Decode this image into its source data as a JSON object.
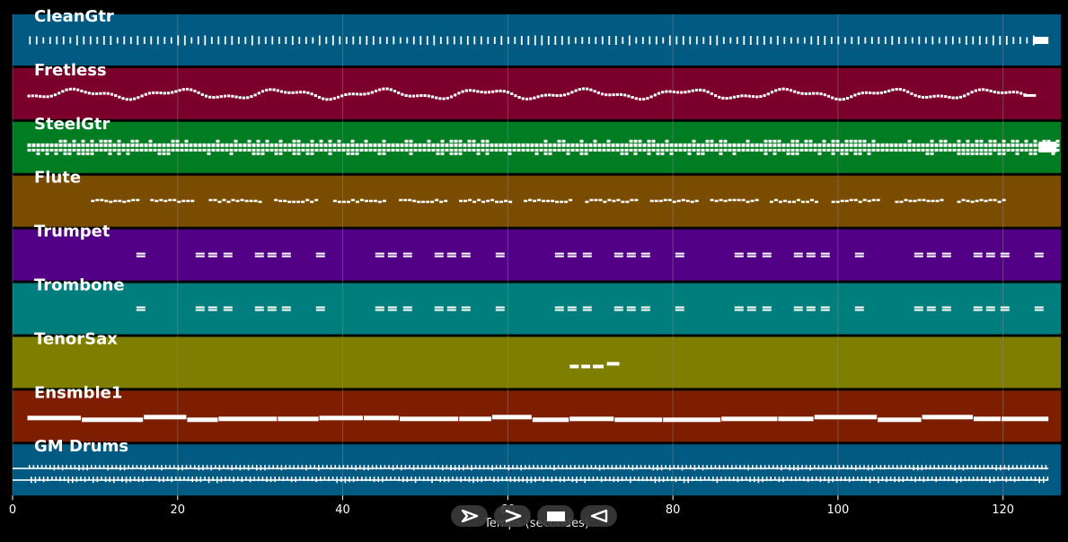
{
  "player": {
    "axis_title": "Temps (secondes)",
    "controls": [
      {
        "name": "play-button",
        "icon": "play-outline-icon"
      },
      {
        "name": "fast-forward-button",
        "icon": "chevron-right-icon"
      },
      {
        "name": "stop-button",
        "icon": "stop-icon"
      },
      {
        "name": "rewind-button",
        "icon": "play-reverse-outline-icon"
      }
    ]
  },
  "colors": {
    "background": "#000000",
    "grid": "#8a8a8a",
    "note": "#ffffff"
  },
  "chart_data": {
    "type": "piano-roll",
    "xlabel": "Temps (secondes)",
    "xlim": [
      0,
      127
    ],
    "xticks": [
      0,
      20,
      40,
      60,
      80,
      100,
      120
    ],
    "grid": true,
    "tracks": [
      {
        "name": "CleanGtr",
        "color": "#005a82",
        "pattern": "pulse",
        "start": 2,
        "end": 125.5
      },
      {
        "name": "Fretless",
        "color": "#7a002b",
        "pattern": "wavy",
        "start": 1.8,
        "end": 124
      },
      {
        "name": "SteelGtr",
        "color": "#007c22",
        "pattern": "dense",
        "start": 1.8,
        "end": 126.5
      },
      {
        "name": "Flute",
        "color": "#7a4c00",
        "pattern": "phrases",
        "start": 9.5,
        "end": 122
      },
      {
        "name": "Trumpet",
        "color": "#520085",
        "pattern": "stabs",
        "start": 15,
        "end": 125.5
      },
      {
        "name": "Trombone",
        "color": "#007e7e",
        "pattern": "stabs",
        "start": 15,
        "end": 125.5
      },
      {
        "name": "TenorSax",
        "color": "#7e7e00",
        "pattern": "solo",
        "start": 67.5,
        "end": 74.5
      },
      {
        "name": "Ensmble1",
        "color": "#7e1e00",
        "pattern": "sustain",
        "start": 1.8,
        "end": 125.5
      },
      {
        "name": "GM Drums",
        "color": "#005a82",
        "pattern": "drums",
        "start": 0,
        "end": 125.5
      }
    ]
  }
}
